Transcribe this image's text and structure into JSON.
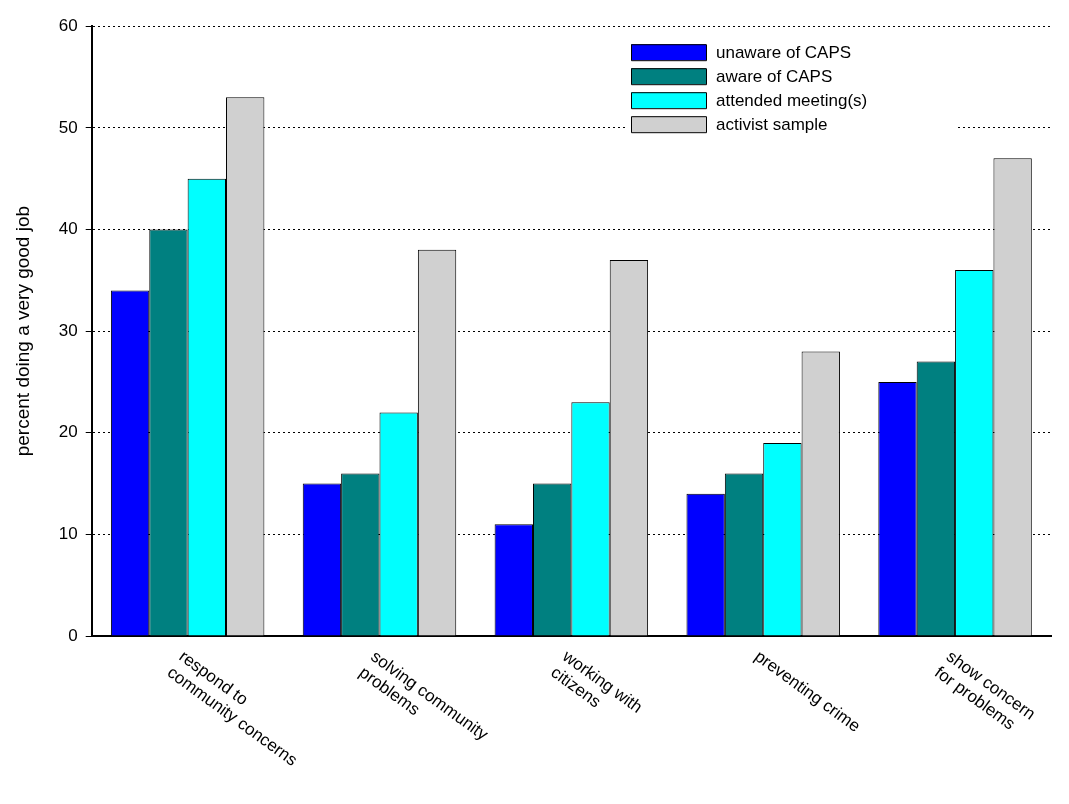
{
  "chart_data": {
    "type": "bar",
    "ylabel": "percent doing a very good job",
    "categories": [
      "respond to\ncommunity concerns",
      "solving community\nproblems",
      "working with\ncitizens",
      "preventing crime",
      "show concern\nfor problems"
    ],
    "series": [
      {
        "name": "unaware of CAPS",
        "color": "#0000ff",
        "values": [
          34,
          15,
          11,
          14,
          25
        ]
      },
      {
        "name": "aware of CAPS",
        "color": "#008080",
        "values": [
          40,
          16,
          15,
          16,
          27
        ]
      },
      {
        "name": "attended meeting(s)",
        "color": "#00ffff",
        "values": [
          45,
          22,
          23,
          19,
          36
        ]
      },
      {
        "name": "activist sample",
        "color": "#d0d0d0",
        "values": [
          53,
          38,
          37,
          28,
          47
        ]
      }
    ],
    "ylim": [
      0,
      60
    ],
    "yticks": [
      0,
      10,
      20,
      30,
      40,
      50,
      60
    ],
    "grid": "y",
    "legend": "top right"
  }
}
